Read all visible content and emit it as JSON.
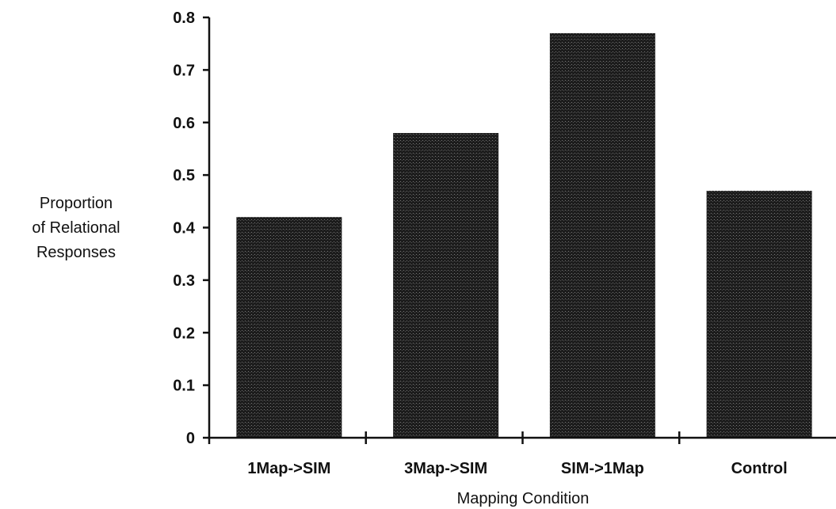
{
  "chart_data": {
    "type": "bar",
    "categories": [
      "1Map->SIM",
      "3Map->SIM",
      "SIM->1Map",
      "Control"
    ],
    "values": [
      0.42,
      0.58,
      0.77,
      0.47
    ],
    "ylabel_lines": [
      "Proportion",
      "of Relational",
      "Responses"
    ],
    "xlabel": "Mapping Condition",
    "ylim": [
      0,
      0.8
    ],
    "yticks": [
      "0",
      "0.1",
      "0.2",
      "0.3",
      "0.4",
      "0.5",
      "0.6",
      "0.7",
      "0.8"
    ],
    "ytick_values": [
      0,
      0.1,
      0.2,
      0.3,
      0.4,
      0.5,
      0.6,
      0.7,
      0.8
    ],
    "grid": false,
    "bar_color": "#2b2b2b"
  }
}
